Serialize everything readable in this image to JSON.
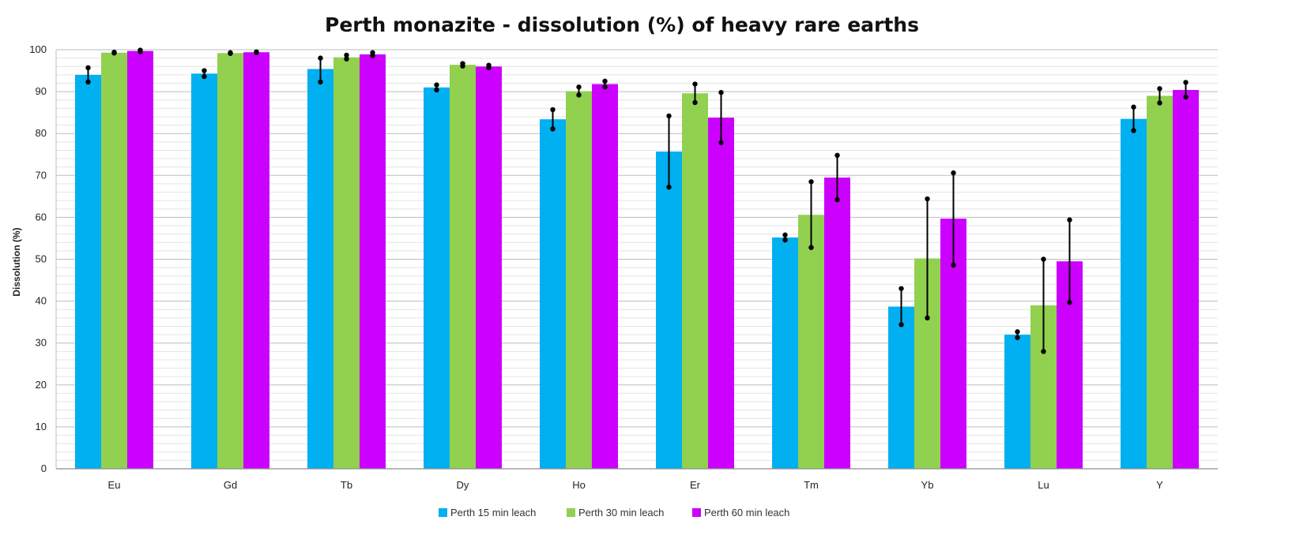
{
  "chart_data": {
    "type": "bar",
    "title": "Perth monazite - dissolution (%) of heavy rare earths",
    "xlabel": "",
    "ylabel": "Dissolution (%)",
    "ylim": [
      0,
      100
    ],
    "yticks": [
      0,
      10,
      20,
      30,
      40,
      50,
      60,
      70,
      80,
      90,
      100
    ],
    "minor_grid_step": 2,
    "legend_position": "bottom",
    "categories": [
      "Eu",
      "Gd",
      "Tb",
      "Dy",
      "Ho",
      "Er",
      "Tm",
      "Yb",
      "Lu",
      "Y"
    ],
    "series": [
      {
        "name": "Perth 15 min leach",
        "color": "#00B0F0",
        "values": [
          94.0,
          94.3,
          95.4,
          91.0,
          83.4,
          75.7,
          55.2,
          38.7,
          32.0,
          83.5
        ],
        "err_low": [
          92.3,
          93.6,
          92.3,
          90.4,
          81.1,
          67.2,
          54.6,
          34.4,
          31.3,
          80.7
        ],
        "err_high": [
          95.7,
          95.0,
          98.0,
          91.6,
          85.7,
          84.2,
          55.8,
          43.0,
          32.7,
          86.3
        ]
      },
      {
        "name": "Perth 30 min leach",
        "color": "#92D050",
        "values": [
          99.3,
          99.2,
          98.2,
          96.4,
          90.1,
          89.6,
          60.6,
          50.2,
          39.0,
          89.0
        ],
        "err_low": [
          99.2,
          99.1,
          97.8,
          96.1,
          89.2,
          87.4,
          52.8,
          36.0,
          28.0,
          87.3
        ],
        "err_high": [
          99.4,
          99.3,
          98.7,
          96.7,
          91.1,
          91.8,
          68.5,
          64.4,
          50.0,
          90.7
        ]
      },
      {
        "name": "Perth 60 min leach",
        "color": "#CC00FF",
        "values": [
          99.7,
          99.4,
          98.9,
          96.0,
          91.8,
          83.8,
          69.5,
          59.7,
          49.5,
          90.4
        ],
        "err_low": [
          99.5,
          99.3,
          98.6,
          95.7,
          91.1,
          77.8,
          64.2,
          48.6,
          39.7,
          88.7
        ],
        "err_high": [
          99.9,
          99.5,
          99.3,
          96.3,
          92.5,
          89.8,
          74.8,
          70.6,
          59.4,
          92.2
        ]
      }
    ]
  }
}
